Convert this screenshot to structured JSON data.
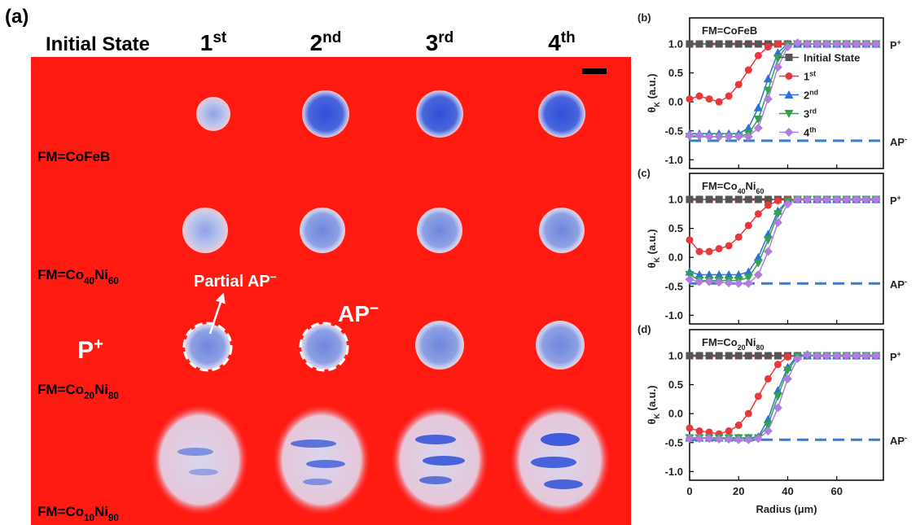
{
  "panel_a": {
    "label": "(a)",
    "columns": [
      "Initial State",
      [
        "1",
        {
          "sup": "st"
        }
      ],
      [
        "2",
        {
          "sup": "nd"
        }
      ],
      [
        "3",
        {
          "sup": "rd"
        }
      ],
      [
        "4",
        {
          "sup": "th"
        }
      ]
    ],
    "rows": [
      "FM=CoFeB",
      [
        "FM=Co",
        {
          "sub": "40"
        },
        "Ni",
        {
          "sub": "60"
        }
      ],
      [
        "FM=Co",
        {
          "sub": "20"
        },
        "Ni",
        {
          "sub": "80"
        }
      ],
      [
        "FM=Co",
        {
          "sub": "10"
        },
        "Ni",
        {
          "sub": "90"
        }
      ]
    ],
    "annotations": {
      "partial": [
        "Partial AP",
        {
          "sup": "−"
        }
      ],
      "ap": [
        "AP",
        {
          "sup": "−"
        }
      ],
      "p": [
        "P",
        {
          "sup": "+"
        }
      ]
    }
  },
  "chart_data": [
    {
      "type": "line",
      "label": "(b)",
      "annotation": "FM=CoFeB",
      "ylabel": [
        "θ",
        {
          "sub": "K"
        },
        " (a.u.)"
      ],
      "x": [
        0,
        4,
        8,
        12,
        16,
        20,
        24,
        28,
        32,
        36,
        40,
        44,
        48,
        52,
        56,
        60,
        64,
        68,
        72,
        76
      ],
      "xlim": [
        0,
        79
      ],
      "xticks": [
        0,
        20,
        40,
        60
      ],
      "ylim": [
        -1.15,
        1.45
      ],
      "yticks": [
        {
          "value": -1,
          "label": "-1.0"
        },
        {
          "value": -0.5,
          "label": "-0.5"
        },
        {
          "value": 0,
          "label": "0.0"
        },
        {
          "value": 0.5,
          "label": "0.5"
        },
        {
          "value": 1,
          "label": "1.0"
        }
      ],
      "legend": "center right",
      "reference_lines": [
        {
          "value": 1,
          "label": [
            "P",
            {
              "sup": "+"
            }
          ],
          "color": "#e8262a"
        },
        {
          "value": -0.67,
          "label": [
            "AP",
            {
              "sup": "-"
            }
          ],
          "color": "#2f7fd6"
        }
      ],
      "series": [
        {
          "name": "Initial State",
          "color": "#555555",
          "marker": "square",
          "values": [
            1,
            1,
            1,
            1,
            1,
            1,
            1,
            1,
            1,
            1,
            1,
            1,
            1,
            1,
            1,
            1,
            1,
            1,
            1,
            1
          ]
        },
        {
          "name": [
            "1",
            {
              "sup": "st"
            }
          ],
          "color": "#e8383b",
          "marker": "circle",
          "values": [
            0.05,
            0.1,
            0.05,
            0,
            0.1,
            0.3,
            0.55,
            0.8,
            0.95,
            1,
            1,
            1,
            1,
            1,
            1,
            1,
            1,
            1,
            1,
            1
          ]
        },
        {
          "name": [
            "2",
            {
              "sup": "nd"
            }
          ],
          "color": "#2f6fd6",
          "marker": "triangle",
          "values": [
            -0.55,
            -0.55,
            -0.55,
            -0.55,
            -0.55,
            -0.55,
            -0.45,
            -0.1,
            0.4,
            0.85,
            1,
            1,
            1,
            1,
            1,
            1,
            1,
            1,
            1,
            1
          ]
        },
        {
          "name": [
            "3",
            {
              "sup": "rd"
            }
          ],
          "color": "#2ea34a",
          "marker": "triangle-down",
          "values": [
            -0.6,
            -0.6,
            -0.6,
            -0.6,
            -0.6,
            -0.6,
            -0.55,
            -0.3,
            0.2,
            0.75,
            0.98,
            1,
            1,
            1,
            1,
            1,
            1,
            1,
            1,
            1
          ]
        },
        {
          "name": [
            "4",
            {
              "sup": "th"
            }
          ],
          "color": "#b07de0",
          "marker": "diamond",
          "values": [
            -0.58,
            -0.58,
            -0.6,
            -0.6,
            -0.6,
            -0.6,
            -0.6,
            -0.45,
            0.05,
            0.6,
            0.95,
            1.02,
            1,
            1,
            1,
            1,
            1,
            1,
            1,
            1
          ]
        }
      ]
    },
    {
      "type": "line",
      "label": "(c)",
      "annotation": [
        "FM=Co",
        {
          "sub": "40"
        },
        "Ni",
        {
          "sub": "60"
        }
      ],
      "ylabel": [
        "θ",
        {
          "sub": "K"
        },
        " (a.u.)"
      ],
      "x": [
        0,
        4,
        8,
        12,
        16,
        20,
        24,
        28,
        32,
        36,
        40,
        44,
        48,
        52,
        56,
        60,
        64,
        68,
        72,
        76
      ],
      "xlim": [
        0,
        79
      ],
      "xticks": [
        0,
        20,
        40,
        60
      ],
      "ylim": [
        -1.15,
        1.45
      ],
      "yticks": [
        {
          "value": -1,
          "label": "-1.0"
        },
        {
          "value": -0.5,
          "label": "-0.5"
        },
        {
          "value": 0,
          "label": "0.0"
        },
        {
          "value": 0.5,
          "label": "0.5"
        },
        {
          "value": 1,
          "label": "1.0"
        }
      ],
      "reference_lines": [
        {
          "value": 1,
          "label": [
            "P",
            {
              "sup": "+"
            }
          ],
          "color": "#e8262a"
        },
        {
          "value": -0.45,
          "label": [
            "AP",
            {
              "sup": "-"
            }
          ],
          "color": "#2f7fd6"
        }
      ],
      "series": [
        {
          "name": "Initial State",
          "color": "#555555",
          "marker": "square",
          "values": [
            1,
            1,
            1,
            1,
            1,
            1,
            1,
            1,
            1,
            1,
            1,
            1,
            1,
            1,
            1,
            1,
            1,
            1,
            1,
            1
          ]
        },
        {
          "name": [
            "1",
            {
              "sup": "st"
            }
          ],
          "color": "#e8383b",
          "marker": "circle",
          "values": [
            0.3,
            0.1,
            0.1,
            0.15,
            0.2,
            0.35,
            0.55,
            0.75,
            0.9,
            0.98,
            1,
            1,
            1,
            1,
            1,
            1,
            1,
            1,
            1,
            1
          ]
        },
        {
          "name": [
            "2",
            {
              "sup": "nd"
            }
          ],
          "color": "#2f6fd6",
          "marker": "triangle",
          "values": [
            -0.25,
            -0.3,
            -0.3,
            -0.3,
            -0.3,
            -0.3,
            -0.25,
            0,
            0.4,
            0.8,
            0.98,
            1,
            1,
            1,
            1,
            1,
            1,
            1,
            1,
            1
          ]
        },
        {
          "name": [
            "3",
            {
              "sup": "rd"
            }
          ],
          "color": "#2ea34a",
          "marker": "triangle-down",
          "values": [
            -0.3,
            -0.4,
            -0.4,
            -0.4,
            -0.4,
            -0.4,
            -0.35,
            -0.1,
            0.3,
            0.75,
            0.97,
            1,
            1,
            1,
            1,
            1,
            1,
            1,
            1,
            1
          ]
        },
        {
          "name": [
            "4",
            {
              "sup": "th"
            }
          ],
          "color": "#b07de0",
          "marker": "diamond",
          "values": [
            -0.38,
            -0.42,
            -0.42,
            -0.43,
            -0.44,
            -0.45,
            -0.45,
            -0.3,
            0.1,
            0.6,
            0.92,
            1,
            1,
            1,
            1,
            1,
            1,
            1,
            1,
            1
          ]
        }
      ]
    },
    {
      "type": "line",
      "label": "(d)",
      "annotation": [
        "FM=Co",
        {
          "sub": "20"
        },
        "Ni",
        {
          "sub": "80"
        }
      ],
      "ylabel": [
        "θ",
        {
          "sub": "K"
        },
        " (a.u.)"
      ],
      "xlabel": "Radius (μm)",
      "x": [
        0,
        4,
        8,
        12,
        16,
        20,
        24,
        28,
        32,
        36,
        40,
        44,
        48,
        52,
        56,
        60,
        64,
        68,
        72,
        76
      ],
      "xlim": [
        0,
        79
      ],
      "xticks": [
        0,
        20,
        40,
        60
      ],
      "ylim": [
        -1.15,
        1.45
      ],
      "yticks": [
        {
          "value": -1,
          "label": "-1.0"
        },
        {
          "value": -0.5,
          "label": "-0.5"
        },
        {
          "value": 0,
          "label": "0.0"
        },
        {
          "value": 0.5,
          "label": "0.5"
        },
        {
          "value": 1,
          "label": "1.0"
        }
      ],
      "reference_lines": [
        {
          "value": 1,
          "label": [
            "P",
            {
              "sup": "+"
            }
          ],
          "color": "#e8262a"
        },
        {
          "value": -0.45,
          "label": [
            "AP",
            {
              "sup": "-"
            }
          ],
          "color": "#2f7fd6"
        }
      ],
      "series": [
        {
          "name": "Initial State",
          "color": "#555555",
          "marker": "square",
          "values": [
            1,
            1,
            1,
            1,
            1,
            1,
            1,
            1,
            1,
            1,
            1,
            1,
            1,
            1,
            1,
            1,
            1,
            1,
            1,
            1
          ]
        },
        {
          "name": [
            "1",
            {
              "sup": "st"
            }
          ],
          "color": "#e8383b",
          "marker": "circle",
          "values": [
            -0.25,
            -0.3,
            -0.32,
            -0.35,
            -0.3,
            -0.2,
            0,
            0.3,
            0.6,
            0.85,
            0.98,
            1,
            1,
            1,
            1,
            1,
            1,
            1,
            1,
            1
          ]
        },
        {
          "name": [
            "2",
            {
              "sup": "nd"
            }
          ],
          "color": "#2f6fd6",
          "marker": "triangle",
          "values": [
            -0.42,
            -0.42,
            -0.42,
            -0.42,
            -0.42,
            -0.42,
            -0.42,
            -0.4,
            -0.1,
            0.4,
            0.8,
            1,
            1,
            1,
            1,
            1,
            1,
            1,
            1,
            1
          ]
        },
        {
          "name": [
            "3",
            {
              "sup": "rd"
            }
          ],
          "color": "#2ea34a",
          "marker": "triangle-down",
          "values": [
            -0.42,
            -0.42,
            -0.42,
            -0.42,
            -0.42,
            -0.42,
            -0.42,
            -0.42,
            -0.2,
            0.3,
            0.75,
            0.98,
            1,
            1,
            1,
            1,
            1,
            1,
            1,
            1
          ]
        },
        {
          "name": [
            "4",
            {
              "sup": "th"
            }
          ],
          "color": "#b07de0",
          "marker": "diamond",
          "values": [
            -0.43,
            -0.43,
            -0.43,
            -0.44,
            -0.44,
            -0.45,
            -0.45,
            -0.43,
            -0.3,
            0.1,
            0.6,
            0.95,
            1.02,
            1,
            1,
            1,
            1,
            1,
            1,
            1
          ]
        }
      ]
    }
  ]
}
